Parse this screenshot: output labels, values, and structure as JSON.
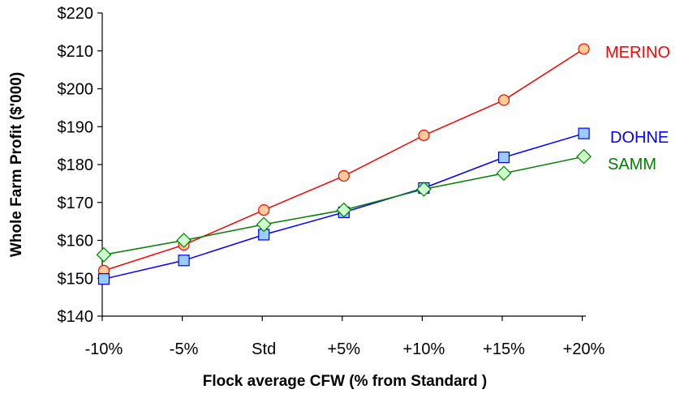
{
  "chart_data": {
    "type": "line",
    "title": "",
    "xlabel": "Flock average CFW (% from Standard )",
    "ylabel": "Whole Farm Profit ($'000)",
    "categories": [
      "-10%",
      "-5%",
      "Std",
      "+5%",
      "+10%",
      "+15%",
      "+20%"
    ],
    "ylim": [
      140,
      220
    ],
    "ytick_step": 10,
    "ytick_labels": [
      "$140",
      "$150",
      "$160",
      "$170",
      "$180",
      "$190",
      "$200",
      "$210",
      "$220"
    ],
    "grid": false,
    "legend": "inline labels at right end of each series",
    "series": [
      {
        "name": "MERINO",
        "color": "#ff0000",
        "marker": "circle",
        "marker_fill": "#ffcc99",
        "values": [
          152,
          158.8,
          168,
          177,
          187.7,
          197,
          210.5
        ]
      },
      {
        "name": "DOHNE",
        "color": "#0000ff",
        "marker": "square",
        "marker_fill": "#99ccff",
        "values": [
          149.8,
          154.7,
          161.5,
          167.4,
          173.8,
          181.9,
          188.2
        ]
      },
      {
        "name": "SAMM",
        "color": "#008000",
        "marker": "diamond",
        "marker_fill": "#ccffcc",
        "values": [
          156.2,
          160,
          164.2,
          168,
          173.5,
          177.7,
          182.1
        ]
      }
    ]
  }
}
